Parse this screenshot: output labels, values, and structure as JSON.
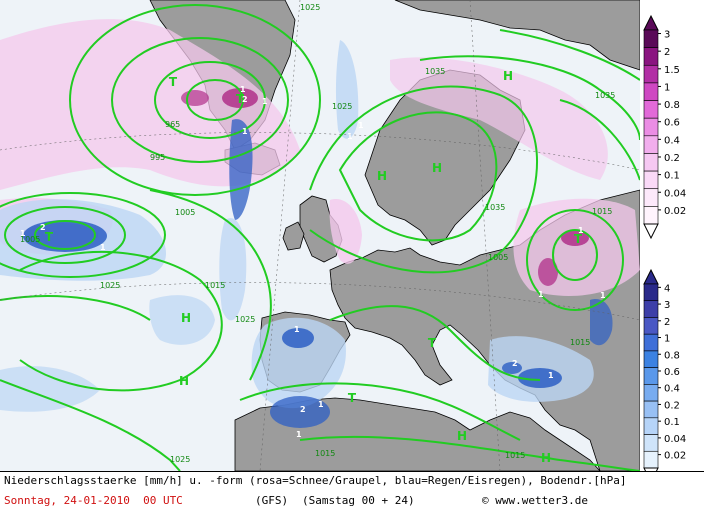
{
  "colors": {
    "ocean": "#eef3f8",
    "land": "#9c9c9c",
    "coast": "#000000",
    "isobar": "#22cc22",
    "snow_dark": "#b0308a",
    "snow_light": "#f4c8ec",
    "rain_dark": "#2d5fc4",
    "rain_light": "#bcd6f4",
    "date_text": "#d01010"
  },
  "isobar_labels": [
    "995",
    "1005",
    "1015",
    "1025",
    "1035",
    "965",
    "1035",
    "1025",
    "1015",
    "1005",
    "1035",
    "1015",
    "1025",
    "1015",
    "1015",
    "1025",
    "1025",
    "1005"
  ],
  "pressure_marks": [
    "H",
    "H",
    "H",
    "H",
    "H",
    "H",
    "H",
    "T",
    "T",
    "T",
    "T",
    "T",
    "T"
  ],
  "precip_values": [
    "1",
    "2",
    "1",
    "1",
    "2",
    "1",
    "1",
    "1",
    "2",
    "1",
    "1",
    "1",
    "1",
    "2",
    "1",
    "1",
    "1",
    "1"
  ],
  "legend_snow": {
    "name": "rosa=Schnee/Graupel",
    "ticks": [
      "3",
      "2",
      "1.5",
      "1",
      "0.8",
      "0.6",
      "0.4",
      "0.2",
      "0.1",
      "0.04",
      "0.02"
    ],
    "colors": [
      "#5a0a58",
      "#8a1580",
      "#b22fa5",
      "#cf48c2",
      "#e26ad8",
      "#eb8de4",
      "#f2aeed",
      "#f6c8f2",
      "#fad9f7",
      "#fde9fb",
      "#fff4fd"
    ]
  },
  "legend_rain": {
    "name": "blau=Regen/Eisregen",
    "ticks": [
      "4",
      "3",
      "2",
      "1",
      "0.8",
      "0.6",
      "0.4",
      "0.2",
      "0.1",
      "0.04",
      "0.02"
    ],
    "colors": [
      "#2a2a8a",
      "#3d3fa8",
      "#4a58c4",
      "#3f6fd8",
      "#3c82e2",
      "#5a98ea",
      "#78acf0",
      "#98c0f4",
      "#b6d4f8",
      "#cfe4fa",
      "#e6f2fd"
    ]
  },
  "footer": {
    "line1": "Niederschlagsstaerke [mm/h] u. -form (rosa=Schnee/Graupel, blau=Regen/Eisregen), Bodendr.[hPa]",
    "date": "Sonntag, 24-01-2010  00 UTC",
    "model": "(GFS)",
    "run": "(Samstag 00 + 24)",
    "copyright": "© www.wetter3.de"
  }
}
